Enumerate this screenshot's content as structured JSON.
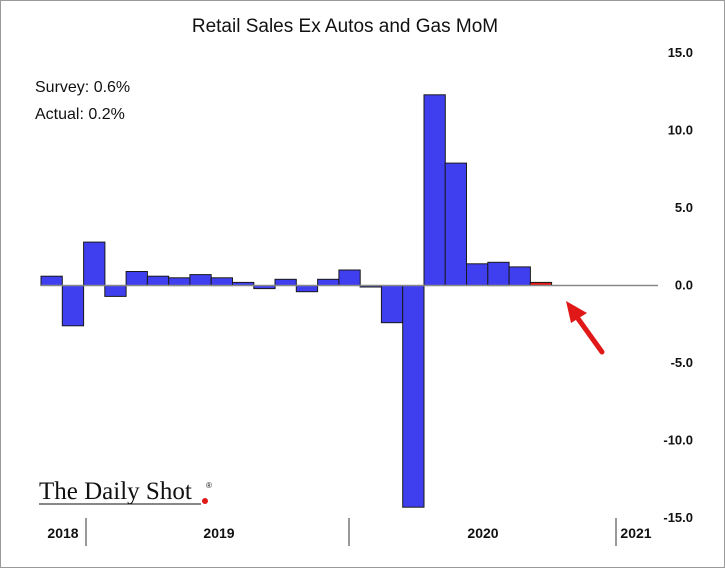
{
  "chart_data": {
    "type": "bar",
    "title": "Retail Sales Ex Autos and Gas MoM",
    "xlabel": "",
    "ylabel": "",
    "ylim": [
      -15,
      15
    ],
    "yticks": [
      15,
      10,
      5,
      0,
      -5,
      -10,
      -15
    ],
    "ytick_labels": [
      "15.0",
      "10.0",
      "5.0",
      "0.0",
      "-5.0",
      "-10.0",
      "-15.0"
    ],
    "categories": [
      "2018-12",
      "2019-01",
      "2019-02",
      "2019-03",
      "2019-04",
      "2019-05",
      "2019-06",
      "2019-07",
      "2019-08",
      "2019-09",
      "2019-10",
      "2019-11",
      "2019-12",
      "2020-01",
      "2020-02",
      "2020-03",
      "2020-04",
      "2020-05",
      "2020-06",
      "2020-07",
      "2020-08",
      "2020-09",
      "2020-10",
      "2020-11",
      "2020-12",
      "2021-01",
      "2021-02",
      "2021-03",
      "2021-04"
    ],
    "values": [
      0.6,
      -2.6,
      2.8,
      -0.7,
      0.9,
      0.6,
      0.5,
      0.7,
      0.5,
      0.2,
      -0.2,
      0.4,
      -0.4,
      0.4,
      1.0,
      -0.1,
      -2.4,
      -14.3,
      12.3,
      7.9,
      1.4,
      1.5,
      1.2,
      0.2,
      0.0,
      0.0,
      0.0,
      0.0,
      0.0
    ],
    "highlight_index": 23,
    "x_groups": [
      {
        "label": "2018",
        "from": "2018-12",
        "to": "2018-12"
      },
      {
        "label": "2019",
        "from": "2019-01",
        "to": "2019-12"
      },
      {
        "label": "2020",
        "from": "2020-01",
        "to": "2020-12"
      },
      {
        "label": "2021",
        "from": "2021-01",
        "to": "2021-04"
      }
    ],
    "annotations": {
      "survey": "Survey: 0.6%",
      "actual": "Actual:  0.2%"
    },
    "colors": {
      "bar": "#3f3ff0",
      "bar_edge": "#1a1a1a",
      "highlight": "#e01818",
      "arrow": "#e01818",
      "zero_line": "#888888"
    }
  },
  "branding": {
    "name": "The Daily Shot",
    "registered": "®"
  }
}
